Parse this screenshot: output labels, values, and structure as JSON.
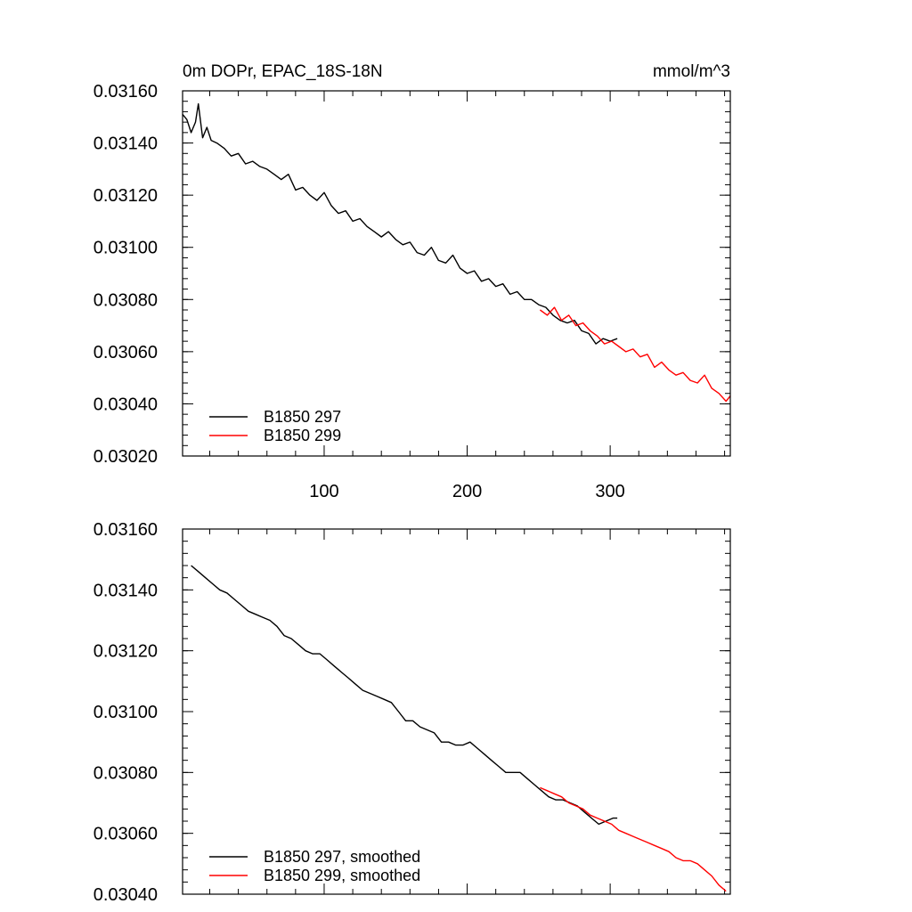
{
  "chart_data": [
    {
      "type": "line",
      "title": "0m DOPr, EPAC_18S-18N",
      "units": "mmol/m^3",
      "xlabel": "",
      "ylabel": "",
      "xlim": [
        1,
        384
      ],
      "ylim": [
        0.0302,
        0.0316
      ],
      "x_ticks": [
        100,
        200,
        300
      ],
      "x_tick_labels": [
        "100",
        "200",
        "300"
      ],
      "y_ticks": [
        0.0302,
        0.0304,
        0.0306,
        0.0308,
        0.031,
        0.0312,
        0.0314,
        0.0316
      ],
      "y_tick_labels": [
        "0.03020",
        "0.03040",
        "0.03060",
        "0.03080",
        "0.03100",
        "0.03120",
        "0.03140",
        "0.03160"
      ],
      "grid": false,
      "legend_position": "bottom-left",
      "series": [
        {
          "name": "B1850 297",
          "color": "#000000",
          "x": [
            1,
            4,
            7,
            10,
            12,
            15,
            18,
            21,
            25,
            30,
            35,
            40,
            45,
            50,
            55,
            60,
            65,
            70,
            75,
            80,
            85,
            90,
            95,
            100,
            105,
            110,
            115,
            120,
            125,
            130,
            135,
            140,
            145,
            150,
            155,
            160,
            165,
            170,
            175,
            180,
            185,
            190,
            195,
            200,
            205,
            210,
            215,
            220,
            225,
            230,
            235,
            240,
            245,
            250,
            255,
            260,
            265,
            270,
            275,
            280,
            285,
            290,
            295,
            300,
            305
          ],
          "values": [
            0.03151,
            0.03149,
            0.03144,
            0.03148,
            0.03155,
            0.03142,
            0.03146,
            0.03141,
            0.0314,
            0.03138,
            0.03135,
            0.03136,
            0.03132,
            0.03133,
            0.03131,
            0.0313,
            0.03128,
            0.03126,
            0.03128,
            0.03122,
            0.03123,
            0.0312,
            0.03118,
            0.03121,
            0.03116,
            0.03113,
            0.03114,
            0.0311,
            0.03111,
            0.03108,
            0.03106,
            0.03104,
            0.03106,
            0.03103,
            0.03101,
            0.03102,
            0.03098,
            0.03097,
            0.031,
            0.03095,
            0.03094,
            0.03097,
            0.03092,
            0.0309,
            0.03091,
            0.03087,
            0.03088,
            0.03085,
            0.03086,
            0.03082,
            0.03083,
            0.0308,
            0.0308,
            0.03078,
            0.03077,
            0.03074,
            0.03072,
            0.03071,
            0.03072,
            0.03068,
            0.03067,
            0.03063,
            0.03065,
            0.03064,
            0.03065
          ]
        },
        {
          "name": "B1850 299",
          "color": "#ff0000",
          "x": [
            251,
            256,
            261,
            266,
            271,
            276,
            281,
            286,
            291,
            296,
            301,
            306,
            311,
            316,
            321,
            326,
            331,
            336,
            341,
            346,
            351,
            356,
            361,
            366,
            371,
            376,
            381,
            384
          ],
          "values": [
            0.03076,
            0.03074,
            0.03077,
            0.03072,
            0.03074,
            0.0307,
            0.03071,
            0.03068,
            0.03066,
            0.03063,
            0.03064,
            0.03062,
            0.0306,
            0.03061,
            0.03058,
            0.03059,
            0.03054,
            0.03056,
            0.03053,
            0.03051,
            0.03052,
            0.03049,
            0.03048,
            0.03051,
            0.03046,
            0.03044,
            0.03041,
            0.03043
          ]
        }
      ]
    },
    {
      "type": "line",
      "title": "",
      "xlabel": "",
      "ylabel": "",
      "xlim": [
        1,
        384
      ],
      "ylim": [
        0.0304,
        0.0316
      ],
      "x_ticks": [
        100,
        200,
        300
      ],
      "x_tick_labels": [
        "",
        "",
        ""
      ],
      "y_ticks": [
        0.0304,
        0.0306,
        0.0308,
        0.031,
        0.0312,
        0.0314,
        0.0316
      ],
      "y_tick_labels": [
        "0.03040",
        "0.03060",
        "0.03080",
        "0.03100",
        "0.03120",
        "0.03140",
        "0.03160"
      ],
      "grid": false,
      "legend_position": "bottom-left",
      "series": [
        {
          "name": "B1850 297, smoothed",
          "color": "#000000",
          "x": [
            7,
            12,
            17,
            22,
            27,
            32,
            37,
            42,
            47,
            52,
            57,
            62,
            67,
            72,
            77,
            82,
            87,
            92,
            97,
            102,
            107,
            112,
            117,
            122,
            127,
            132,
            137,
            142,
            147,
            152,
            157,
            162,
            167,
            172,
            177,
            182,
            187,
            192,
            197,
            202,
            207,
            212,
            217,
            222,
            227,
            232,
            237,
            242,
            247,
            252,
            257,
            262,
            267,
            272,
            277,
            282,
            287,
            292,
            297,
            302,
            305
          ],
          "values": [
            0.03148,
            0.03146,
            0.03144,
            0.03142,
            0.0314,
            0.03139,
            0.03137,
            0.03135,
            0.03133,
            0.03132,
            0.03131,
            0.0313,
            0.03128,
            0.03125,
            0.03124,
            0.03122,
            0.0312,
            0.03119,
            0.03119,
            0.03117,
            0.03115,
            0.03113,
            0.03111,
            0.03109,
            0.03107,
            0.03106,
            0.03105,
            0.03104,
            0.03103,
            0.031,
            0.03097,
            0.03097,
            0.03095,
            0.03094,
            0.03093,
            0.0309,
            0.0309,
            0.03089,
            0.03089,
            0.0309,
            0.03088,
            0.03086,
            0.03084,
            0.03082,
            0.0308,
            0.0308,
            0.0308,
            0.03078,
            0.03076,
            0.03074,
            0.03072,
            0.03071,
            0.03071,
            0.0307,
            0.03069,
            0.03067,
            0.03065,
            0.03063,
            0.03064,
            0.03065,
            0.03065
          ]
        },
        {
          "name": "B1850 299, smoothed",
          "color": "#ff0000",
          "x": [
            251,
            256,
            261,
            266,
            271,
            276,
            281,
            286,
            291,
            296,
            301,
            306,
            311,
            316,
            321,
            326,
            331,
            336,
            341,
            346,
            351,
            356,
            361,
            366,
            371,
            376,
            381
          ],
          "values": [
            0.03075,
            0.03074,
            0.03073,
            0.03072,
            0.0307,
            0.03069,
            0.03068,
            0.03066,
            0.03065,
            0.03064,
            0.03063,
            0.03061,
            0.0306,
            0.03059,
            0.03058,
            0.03057,
            0.03056,
            0.03055,
            0.03054,
            0.03052,
            0.03051,
            0.03051,
            0.0305,
            0.03048,
            0.03046,
            0.03043,
            0.03041
          ]
        }
      ]
    }
  ]
}
